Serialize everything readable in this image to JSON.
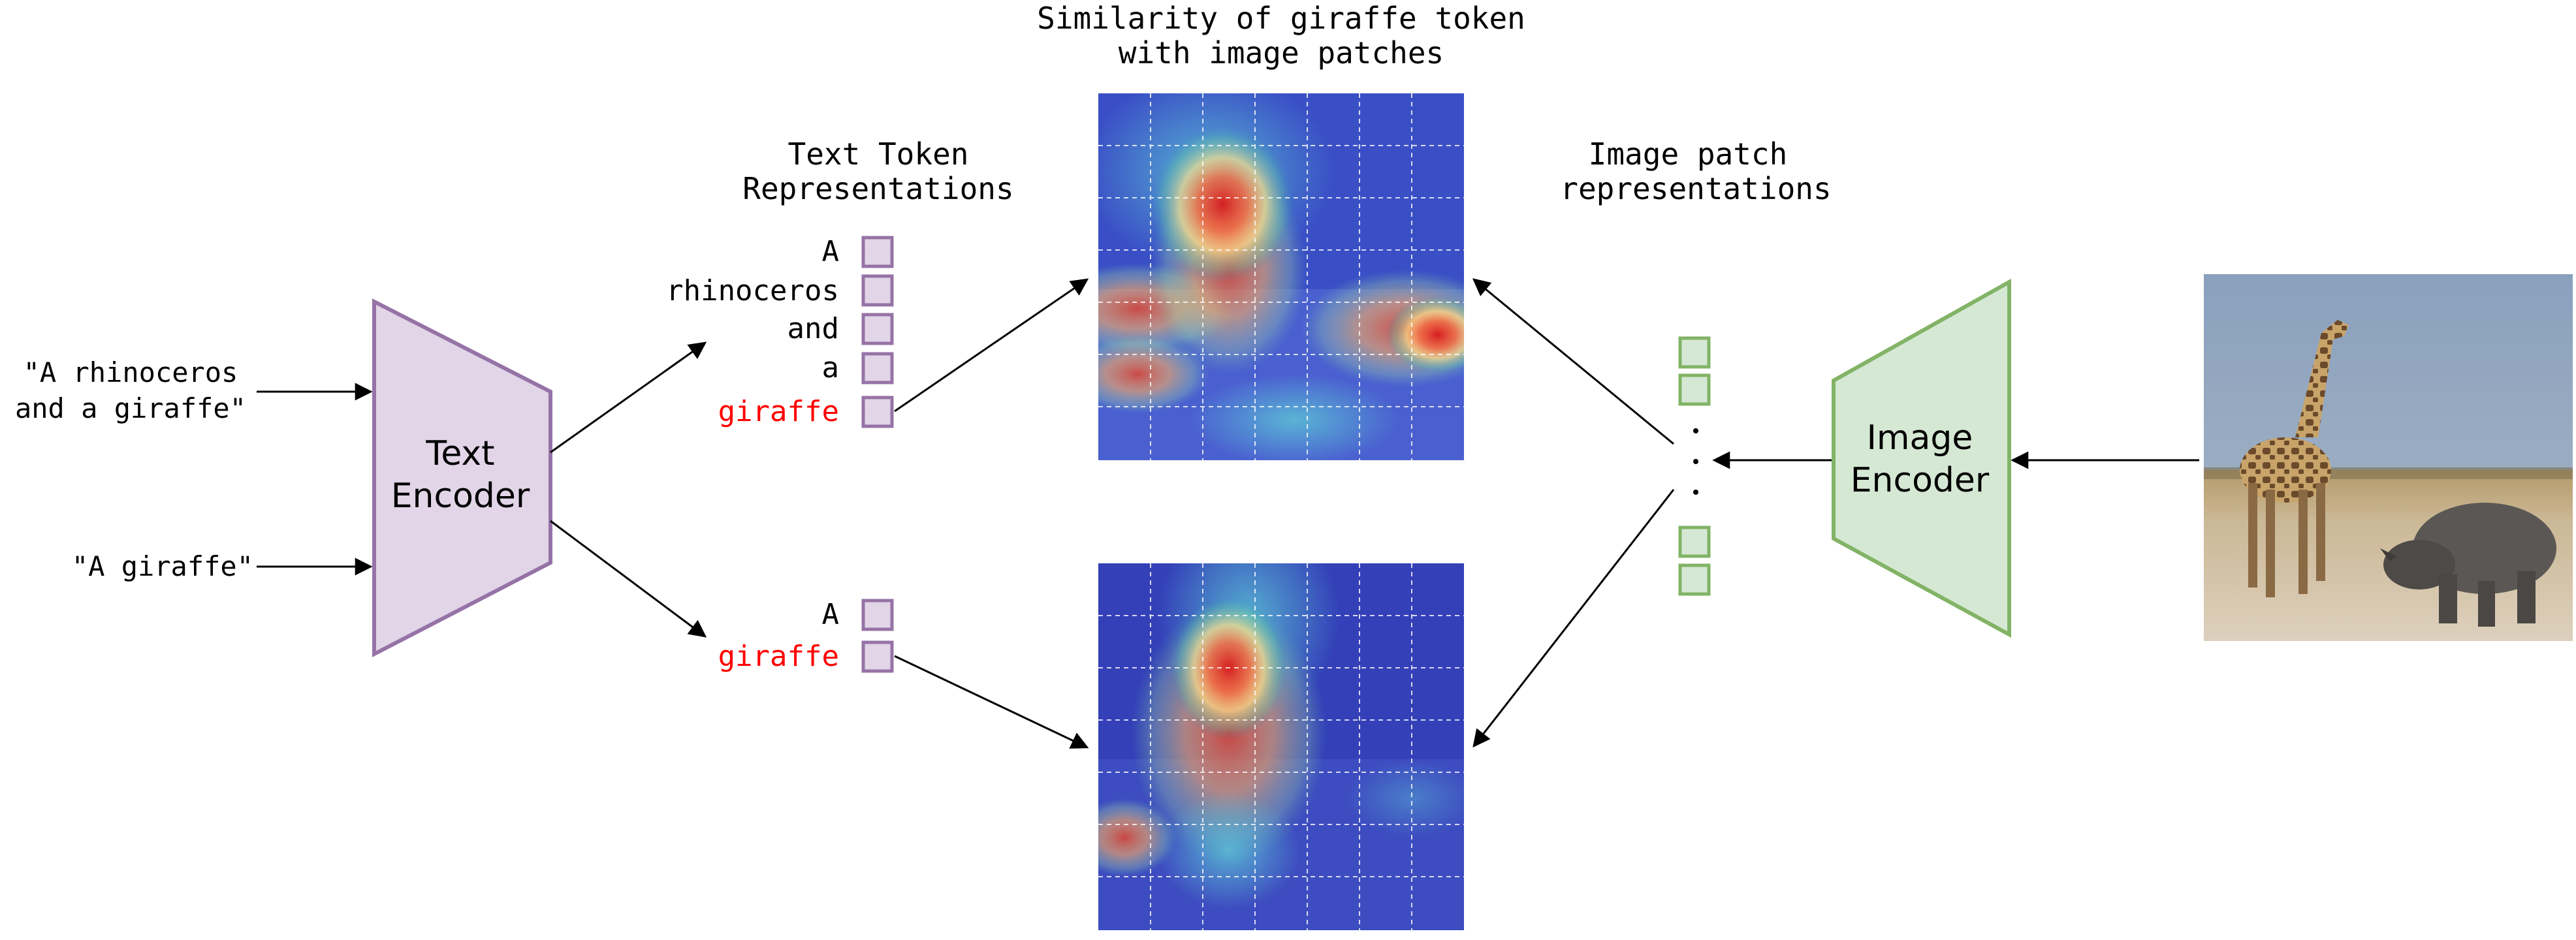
{
  "inputs": {
    "text1_line1": "\"A rhinoceros",
    "text1_line2": "and a giraffe\"",
    "text2": "\"A giraffe\""
  },
  "text_encoder": {
    "line1": "Text",
    "line2": "Encoder"
  },
  "image_encoder": {
    "line1": "Image",
    "line2": "Encoder"
  },
  "token_header": {
    "line1": "Text Token",
    "line2": "Representations"
  },
  "heatmap_title": {
    "line1": "Similarity of giraffe token",
    "line2": "with image patches"
  },
  "patch_header": {
    "line1": "Image patch",
    "line2": "representations"
  },
  "tokens_top": [
    "A",
    "rhinoceros",
    "and",
    "a",
    "giraffe"
  ],
  "tokens_bottom": [
    "A",
    "giraffe"
  ],
  "highlight_token": "giraffe",
  "colors": {
    "text_encoder_fill": "#e1d5e7",
    "text_encoder_stroke": "#9673a6",
    "image_encoder_fill": "#d5e8d4",
    "image_encoder_stroke": "#82b366",
    "highlight": "#ff0000"
  }
}
